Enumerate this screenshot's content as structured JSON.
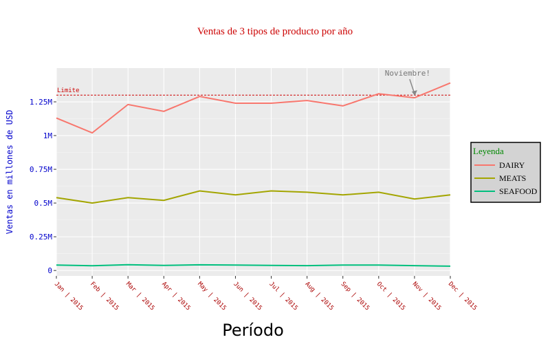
{
  "chart_data": {
    "type": "line",
    "title": "Ventas de 3 tipos de producto por año",
    "xlabel": "Período",
    "ylabel": "Ventas en millones de USD",
    "categories": [
      "Jan | 2015",
      "Feb | 2015",
      "Mar | 2015",
      "Apr | 2015",
      "May | 2015",
      "Jun | 2015",
      "Jul | 2015",
      "Aug | 2015",
      "Sep | 2015",
      "Oct | 2015",
      "Nov | 2015",
      "Dec | 2015"
    ],
    "ylim": [
      -0.04,
      1.5
    ],
    "yticks": [
      {
        "value": 0,
        "label": "0"
      },
      {
        "value": 0.25,
        "label": "0.25M"
      },
      {
        "value": 0.5,
        "label": "0.5M"
      },
      {
        "value": 0.75,
        "label": "0.75M"
      },
      {
        "value": 1,
        "label": "1M"
      },
      {
        "value": 1.25,
        "label": "1.25M"
      }
    ],
    "series": [
      {
        "name": "DAIRY",
        "color": "#F8766D",
        "values": [
          1.13,
          1.02,
          1.23,
          1.18,
          1.29,
          1.24,
          1.24,
          1.26,
          1.22,
          1.31,
          1.28,
          1.39
        ]
      },
      {
        "name": "MEATS",
        "color": "#A3A500",
        "values": [
          0.54,
          0.5,
          0.54,
          0.52,
          0.59,
          0.56,
          0.59,
          0.58,
          0.56,
          0.58,
          0.53,
          0.56
        ]
      },
      {
        "name": "SEAFOOD",
        "color": "#00BF7D",
        "values": [
          0.04,
          0.035,
          0.043,
          0.038,
          0.042,
          0.04,
          0.038,
          0.036,
          0.04,
          0.04,
          0.036,
          0.032
        ]
      }
    ],
    "reference_line": {
      "value": 1.3,
      "label": "Limite",
      "color": "#cc0000",
      "style": "dashed"
    },
    "annotation": {
      "text": "Noviembre!",
      "category": "Nov | 2015",
      "value": 1.28
    },
    "legend": {
      "title": "Leyenda",
      "placement": "right"
    },
    "grid": true
  }
}
